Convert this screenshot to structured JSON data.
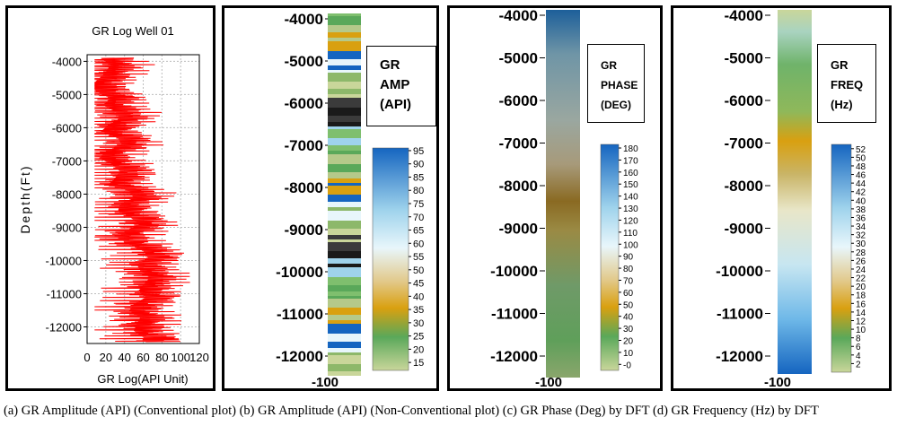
{
  "caption": "(a) GR Amplitude (API) (Conventional plot) (b) GR Amplitude (API) (Non-Conventional plot) (c) GR Phase (Deg) by DFT (d) GR Frequency (Hz) by DFT",
  "chart_data": [
    {
      "type": "line",
      "title": "GR Log Well 01",
      "xlabel": "GR Log(API Unit)",
      "ylabel": "Depth(Ft)",
      "xlim": [
        0,
        120
      ],
      "ylim": [
        -12500,
        -3800
      ],
      "x_ticks": [
        "0",
        "20",
        "40",
        "60",
        "80",
        "100",
        "120"
      ],
      "y_ticks": [
        "-4000",
        "-5000",
        "-6000",
        "-7000",
        "-8000",
        "-9000",
        "-10000",
        "-11000",
        "-12000"
      ],
      "grid": true,
      "color": "#ff0000",
      "series": [
        {
          "depth": [
            -3900,
            -4100,
            -4300,
            -4500,
            -4700,
            -4900,
            -5100,
            -5300,
            -5500,
            -5700,
            -5900,
            -6100,
            -6300,
            -6500,
            -6700,
            -6900,
            -7100,
            -7300,
            -7500,
            -7700,
            -7900,
            -8100,
            -8300,
            -8500,
            -8700,
            -8900,
            -9100,
            -9300,
            -9500,
            -9700,
            -9900,
            -10100,
            -10300,
            -10500,
            -10700,
            -10900,
            -11100,
            -11300,
            -11500,
            -11700,
            -11900,
            -12100,
            -12300,
            -12450
          ],
          "values": [
            40,
            50,
            45,
            38,
            30,
            35,
            50,
            42,
            55,
            60,
            48,
            40,
            58,
            62,
            45,
            38,
            52,
            60,
            55,
            48,
            70,
            75,
            60,
            58,
            72,
            80,
            66,
            58,
            70,
            85,
            90,
            78,
            82,
            92,
            86,
            80,
            88,
            75,
            70,
            82,
            78,
            75,
            85,
            88
          ]
        }
      ]
    },
    {
      "type": "heatmap",
      "title": "GR AMP (API)",
      "y_ticks": [
        "-4000",
        "-5000",
        "-6000",
        "-7000",
        "-8000",
        "-9000",
        "-10000",
        "-11000",
        "-12000"
      ],
      "x_tick": "-100",
      "colorbar_ticks": [
        "95",
        "90",
        "85",
        "80",
        "75",
        "70",
        "65",
        "60",
        "55",
        "50",
        "45",
        "40",
        "35",
        "30",
        "25",
        "20",
        "15"
      ],
      "colorbar_range": [
        12,
        96
      ]
    },
    {
      "type": "heatmap",
      "title": "GR PHASE (DEG)",
      "y_ticks": [
        "-4000",
        "-5000",
        "-6000",
        "-7000",
        "-8000",
        "-9000",
        "-10000",
        "-11000",
        "-12000"
      ],
      "x_tick": "-100",
      "colorbar_ticks": [
        "180",
        "170",
        "160",
        "150",
        "140",
        "130",
        "120",
        "110",
        "100",
        "90",
        "80",
        "70",
        "60",
        "50",
        "40",
        "30",
        "20",
        "10",
        "-0"
      ],
      "colorbar_range": [
        -5,
        183
      ]
    },
    {
      "type": "heatmap",
      "title": "GR FREQ (Hz)",
      "y_ticks": [
        "-4000",
        "-5000",
        "-6000",
        "-7000",
        "-8000",
        "-9000",
        "-10000",
        "-11000",
        "-12000"
      ],
      "x_tick": "-100",
      "colorbar_ticks": [
        "52",
        "50",
        "48",
        "46",
        "44",
        "42",
        "40",
        "38",
        "36",
        "34",
        "32",
        "30",
        "28",
        "26",
        "24",
        "22",
        "20",
        "18",
        "16",
        "14",
        "12",
        "10",
        "8",
        "6",
        "4",
        "2"
      ],
      "colorbar_range": [
        0,
        53
      ]
    }
  ],
  "legends": {
    "b": [
      "GR",
      "AMP",
      "(API)"
    ],
    "c": [
      "GR",
      "PHASE",
      "(DEG)"
    ],
    "d": [
      "GR",
      "FREQ",
      "(Hz)"
    ]
  },
  "colors": {
    "red": "#ff0000",
    "blue": "#1565c0",
    "light": "#e8f6fb",
    "gold": "#d9a010",
    "green": "#5aa85a",
    "pale": "#c9d69a"
  }
}
